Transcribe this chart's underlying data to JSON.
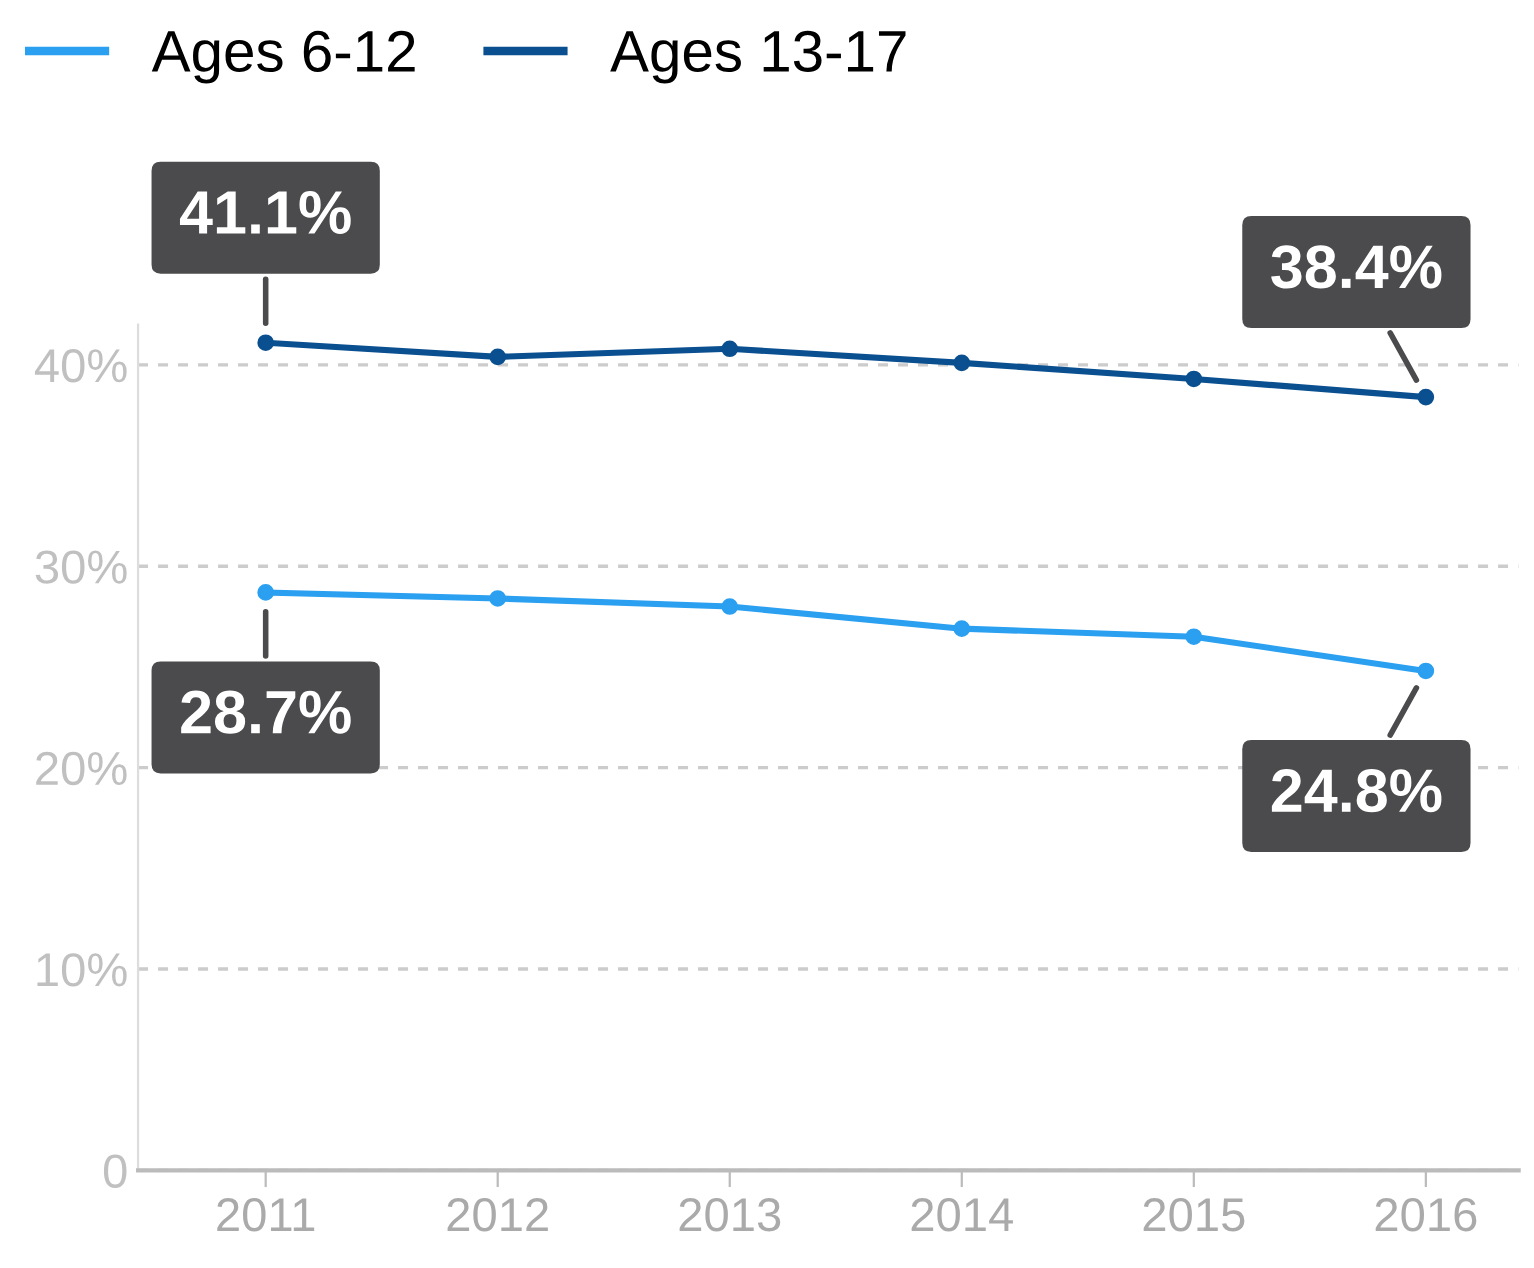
{
  "chart_data": {
    "type": "line",
    "categories": [
      "2011",
      "2012",
      "2013",
      "2014",
      "2015",
      "2016"
    ],
    "series": [
      {
        "name": "Ages 6-12",
        "color": "#2b9ff0",
        "values": [
          28.7,
          28.4,
          28.0,
          26.9,
          26.5,
          24.8
        ]
      },
      {
        "name": "Ages 13-17",
        "color": "#0a4f8f",
        "values": [
          41.1,
          40.4,
          40.8,
          40.1,
          39.3,
          38.4
        ]
      }
    ],
    "ylim": [
      0,
      42
    ],
    "yticks": [
      {
        "value": 0,
        "label": "0"
      },
      {
        "value": 10,
        "label": "10%"
      },
      {
        "value": 20,
        "label": "20%"
      },
      {
        "value": 30,
        "label": "30%"
      },
      {
        "value": 40,
        "label": "40%"
      }
    ],
    "grid": "y",
    "legend": "top left",
    "marker": "circle",
    "line_style": "solid",
    "annotations": [
      {
        "text": "41.1%",
        "x": "2011",
        "y": 41.1
      },
      {
        "text": "38.4%",
        "x": "2016",
        "y": 38.4
      },
      {
        "text": "28.7%",
        "x": "2011",
        "y": 28.7
      },
      {
        "text": "24.8%",
        "x": "2016",
        "y": 24.8
      }
    ]
  }
}
